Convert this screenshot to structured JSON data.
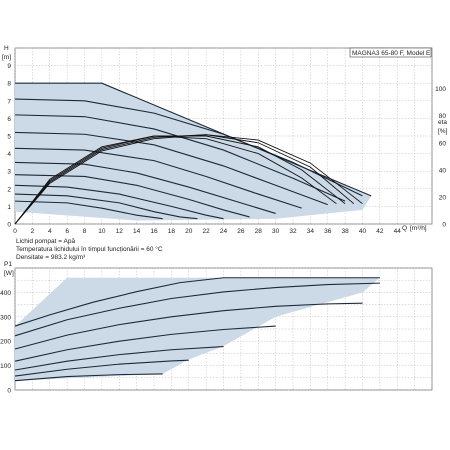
{
  "chart_data": [
    {
      "type": "line",
      "model_label": "MAGNA3 65-80 F, Model E",
      "ylabel": "H",
      "yunit": "[m]",
      "xlabel": "Q",
      "xunit": "[m³/h]",
      "y2label": "eta",
      "y2unit": "[%]",
      "xlim": [
        0,
        48
      ],
      "ylim": [
        0,
        10
      ],
      "y2lim": [
        0,
        130
      ],
      "x_ticks": [
        "0",
        "2",
        "4",
        "6",
        "8",
        "10",
        "12",
        "14",
        "16",
        "18",
        "20",
        "22",
        "24",
        "26",
        "28",
        "30",
        "32",
        "34",
        "36",
        "38",
        "40",
        "42",
        "44"
      ],
      "y_ticks": [
        "0",
        "1",
        "2",
        "3",
        "4",
        "5",
        "6",
        "7",
        "8",
        "9"
      ],
      "y2_ticks": [
        "0",
        "20",
        "40",
        "60",
        "80",
        "100"
      ],
      "grid": true,
      "operating_area_color": "#ccd9e6",
      "head_curves": [
        {
          "points": [
            [
              0,
              8
            ],
            [
              10,
              8
            ],
            [
              41,
              1.6
            ]
          ]
        },
        {
          "points": [
            [
              0,
              7.1
            ],
            [
              8,
              7.0
            ],
            [
              16,
              6.3
            ],
            [
              24,
              5.1
            ],
            [
              32,
              3.5
            ],
            [
              40,
              1.6
            ]
          ]
        },
        {
          "points": [
            [
              0,
              6.2
            ],
            [
              8,
              6.1
            ],
            [
              16,
              5.4
            ],
            [
              24,
              4.2
            ],
            [
              32,
              2.6
            ],
            [
              38,
              1.3
            ]
          ]
        },
        {
          "points": [
            [
              0,
              5.2
            ],
            [
              8,
              5.1
            ],
            [
              16,
              4.5
            ],
            [
              24,
              3.3
            ],
            [
              30,
              2.2
            ],
            [
              36,
              1.1
            ]
          ]
        },
        {
          "points": [
            [
              0,
              4.3
            ],
            [
              8,
              4.2
            ],
            [
              16,
              3.6
            ],
            [
              22,
              2.7
            ],
            [
              28,
              1.7
            ],
            [
              33,
              0.9
            ]
          ]
        },
        {
          "points": [
            [
              0,
              3.5
            ],
            [
              8,
              3.4
            ],
            [
              14,
              2.9
            ],
            [
              20,
              2.1
            ],
            [
              26,
              1.2
            ],
            [
              30,
              0.6
            ]
          ]
        },
        {
          "points": [
            [
              0,
              2.8
            ],
            [
              8,
              2.7
            ],
            [
              14,
              2.2
            ],
            [
              20,
              1.4
            ],
            [
              24,
              0.8
            ],
            [
              27,
              0.4
            ]
          ]
        },
        {
          "points": [
            [
              0,
              2.2
            ],
            [
              6,
              2.1
            ],
            [
              12,
              1.7
            ],
            [
              18,
              1.0
            ],
            [
              22,
              0.5
            ],
            [
              24,
              0.3
            ]
          ]
        },
        {
          "points": [
            [
              0,
              1.7
            ],
            [
              6,
              1.6
            ],
            [
              12,
              1.2
            ],
            [
              16,
              0.7
            ],
            [
              19,
              0.4
            ],
            [
              21,
              0.3
            ]
          ]
        },
        {
          "points": [
            [
              0,
              1.3
            ],
            [
              6,
              1.2
            ],
            [
              10,
              0.9
            ],
            [
              14,
              0.5
            ],
            [
              17,
              0.3
            ]
          ]
        }
      ],
      "eta_curves": [
        {
          "points": [
            [
              0,
              0
            ],
            [
              4,
              30
            ],
            [
              10,
              54
            ],
            [
              16,
              63
            ],
            [
              22,
              66
            ],
            [
              28,
              62
            ],
            [
              34,
              45
            ],
            [
              40,
              15
            ]
          ]
        },
        {
          "points": [
            [
              0,
              0
            ],
            [
              4,
              31
            ],
            [
              10,
              55
            ],
            [
              16,
              64
            ],
            [
              22,
              66
            ],
            [
              28,
              60
            ],
            [
              34,
              42
            ],
            [
              39,
              15
            ]
          ]
        },
        {
          "points": [
            [
              0,
              0
            ],
            [
              4,
              32
            ],
            [
              10,
              56
            ],
            [
              16,
              65
            ],
            [
              22,
              65
            ],
            [
              28,
              57
            ],
            [
              33,
              40
            ],
            [
              38,
              15
            ]
          ]
        },
        {
          "points": [
            [
              0,
              0
            ],
            [
              4,
              33
            ],
            [
              10,
              57
            ],
            [
              16,
              65
            ],
            [
              22,
              63
            ],
            [
              28,
              52
            ],
            [
              33,
              34
            ],
            [
              37,
              15
            ]
          ]
        }
      ],
      "operating_area": [
        [
          0,
          8
        ],
        [
          10,
          8
        ],
        [
          41,
          1.6
        ],
        [
          40,
          0.8
        ],
        [
          30,
          0.3
        ],
        [
          14,
          0.2
        ],
        [
          0,
          0.7
        ]
      ]
    },
    {
      "type": "line",
      "ylabel": "P1",
      "yunit": "[W]",
      "xlim": [
        0,
        48
      ],
      "ylim": [
        0,
        500
      ],
      "y_ticks": [
        "0",
        "100",
        "200",
        "300",
        "400"
      ],
      "grid": true,
      "power_curves": [
        {
          "points": [
            [
              0,
              262
            ],
            [
              4,
              308
            ],
            [
              9,
              360
            ],
            [
              14,
              403
            ],
            [
              19,
              440
            ],
            [
              24,
              460
            ],
            [
              34,
              460
            ],
            [
              42,
              460
            ]
          ]
        },
        {
          "points": [
            [
              0,
              222
            ],
            [
              6,
              288
            ],
            [
              12,
              335
            ],
            [
              18,
              375
            ],
            [
              24,
              402
            ],
            [
              30,
              420
            ],
            [
              36,
              432
            ],
            [
              42,
              438
            ]
          ]
        },
        {
          "points": [
            [
              0,
              168
            ],
            [
              6,
              225
            ],
            [
              12,
              268
            ],
            [
              18,
              300
            ],
            [
              24,
              325
            ],
            [
              30,
              343
            ],
            [
              36,
              353
            ],
            [
              40,
              356
            ]
          ]
        },
        {
          "points": [
            [
              0,
              118
            ],
            [
              6,
              165
            ],
            [
              12,
              200
            ],
            [
              18,
              228
            ],
            [
              24,
              248
            ],
            [
              30,
              262
            ]
          ]
        },
        {
          "points": [
            [
              0,
              82
            ],
            [
              6,
              118
            ],
            [
              12,
              145
            ],
            [
              18,
              165
            ],
            [
              24,
              178
            ]
          ]
        },
        {
          "points": [
            [
              0,
              57
            ],
            [
              6,
              85
            ],
            [
              12,
              106
            ],
            [
              18,
              119
            ],
            [
              20,
              122
            ]
          ]
        },
        {
          "points": [
            [
              0,
              38
            ],
            [
              6,
              55
            ],
            [
              12,
              63
            ],
            [
              17,
              66
            ]
          ]
        }
      ],
      "operating_area": [
        [
          6,
          460
        ],
        [
          42,
          460
        ],
        [
          40,
          400
        ],
        [
          30,
          300
        ],
        [
          24,
          180
        ],
        [
          20,
          125
        ],
        [
          17,
          66
        ],
        [
          0,
          38
        ],
        [
          0,
          262
        ]
      ]
    }
  ],
  "legend_text": {
    "line1": "Lichid pompat = Apă",
    "line2": "Temperatura lichidului în timpul funcționării = 60 °C",
    "line3": "Densitate = 983.2 kg/m³"
  }
}
